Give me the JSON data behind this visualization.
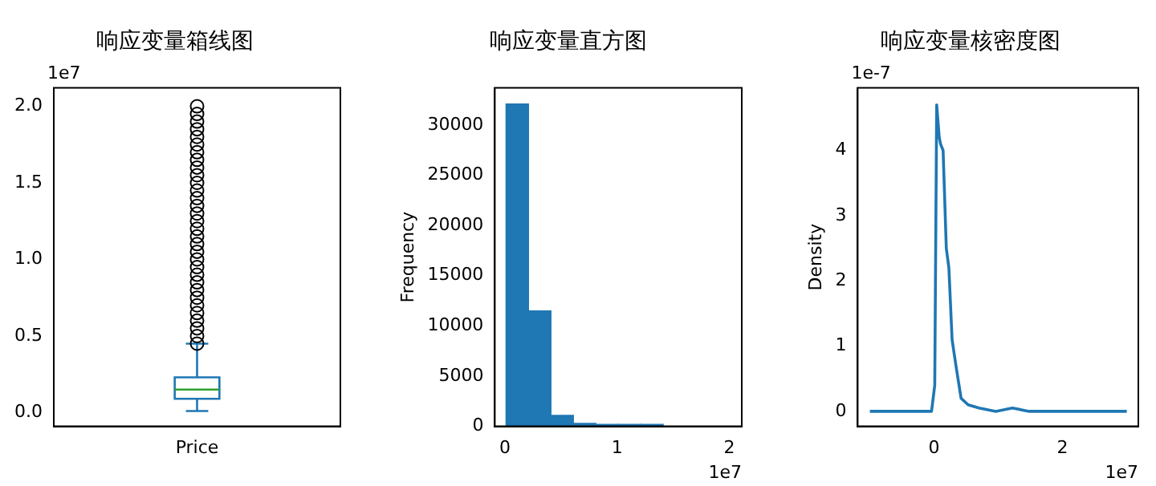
{
  "chart_data": [
    {
      "type": "box",
      "title": "响应变量箱线图",
      "categories": [
        "Price"
      ],
      "color": "#1f77b4",
      "boxes": [
        {
          "low": 0.01,
          "q1": 0.09,
          "median": 0.15,
          "q3": 0.23,
          "high": 0.45,
          "outliers": [
            0.45,
            0.5,
            0.55,
            0.6,
            0.65,
            0.7,
            0.75,
            0.8,
            0.85,
            0.9,
            0.95,
            1.0,
            1.05,
            1.1,
            1.15,
            1.2,
            1.25,
            1.3,
            1.35,
            1.4,
            1.45,
            1.5,
            1.55,
            1.6,
            1.65,
            1.7,
            1.75,
            1.8,
            1.85,
            1.9,
            1.95,
            2.0
          ]
        }
      ],
      "ylim": [
        -0.09,
        2.12
      ],
      "yticks": [
        {
          "value": 0,
          "label": "0.0"
        },
        {
          "value": 0.5,
          "label": "0.5"
        },
        {
          "value": 1,
          "label": "1.0"
        },
        {
          "value": 1.5,
          "label": "1.5"
        },
        {
          "value": 2,
          "label": "2.0"
        }
      ],
      "annotations": [
        "1e7"
      ]
    },
    {
      "type": "histogram",
      "title": "响应变量直方图",
      "ylabel": "Frequency",
      "color": "#1f77b4",
      "bins": [
        0.01,
        0.21,
        0.41,
        0.61,
        0.81,
        1.01,
        1.21,
        1.41,
        1.61,
        1.81,
        2.01
      ],
      "values": [
        32100,
        11500,
        1100,
        300,
        200,
        200,
        200,
        0,
        0,
        0
      ],
      "xlim": [
        -0.09,
        2.11
      ],
      "xticks": [
        0,
        1,
        2
      ],
      "ylim": [
        0,
        33700
      ],
      "yticks": [
        0,
        5000,
        10000,
        15000,
        20000,
        25000,
        30000
      ],
      "annotations": [
        "1e7"
      ]
    },
    {
      "type": "line",
      "title": "响应变量核密度图",
      "ylabel": "Density",
      "color": "#1f77b4",
      "x": [
        -1.0,
        -0.04,
        0.01,
        0.04,
        0.08,
        0.1,
        0.14,
        0.19,
        0.23,
        0.28,
        0.34,
        0.42,
        0.53,
        0.7,
        0.96,
        1.22,
        1.48,
        2.0,
        3.0
      ],
      "values": [
        0,
        0,
        0.4,
        4.7,
        4.2,
        4.1,
        4.0,
        2.5,
        2.2,
        1.1,
        0.7,
        0.2,
        0.1,
        0.05,
        0,
        0.05,
        0,
        0,
        0
      ],
      "xlim": [
        -1.19,
        3.18
      ],
      "xticks": [
        0,
        2
      ],
      "ylim": [
        -0.23,
        4.96
      ],
      "yticks": [
        0,
        1,
        2,
        3,
        4
      ],
      "annotations": [
        "1e7",
        "1e-7"
      ]
    }
  ]
}
